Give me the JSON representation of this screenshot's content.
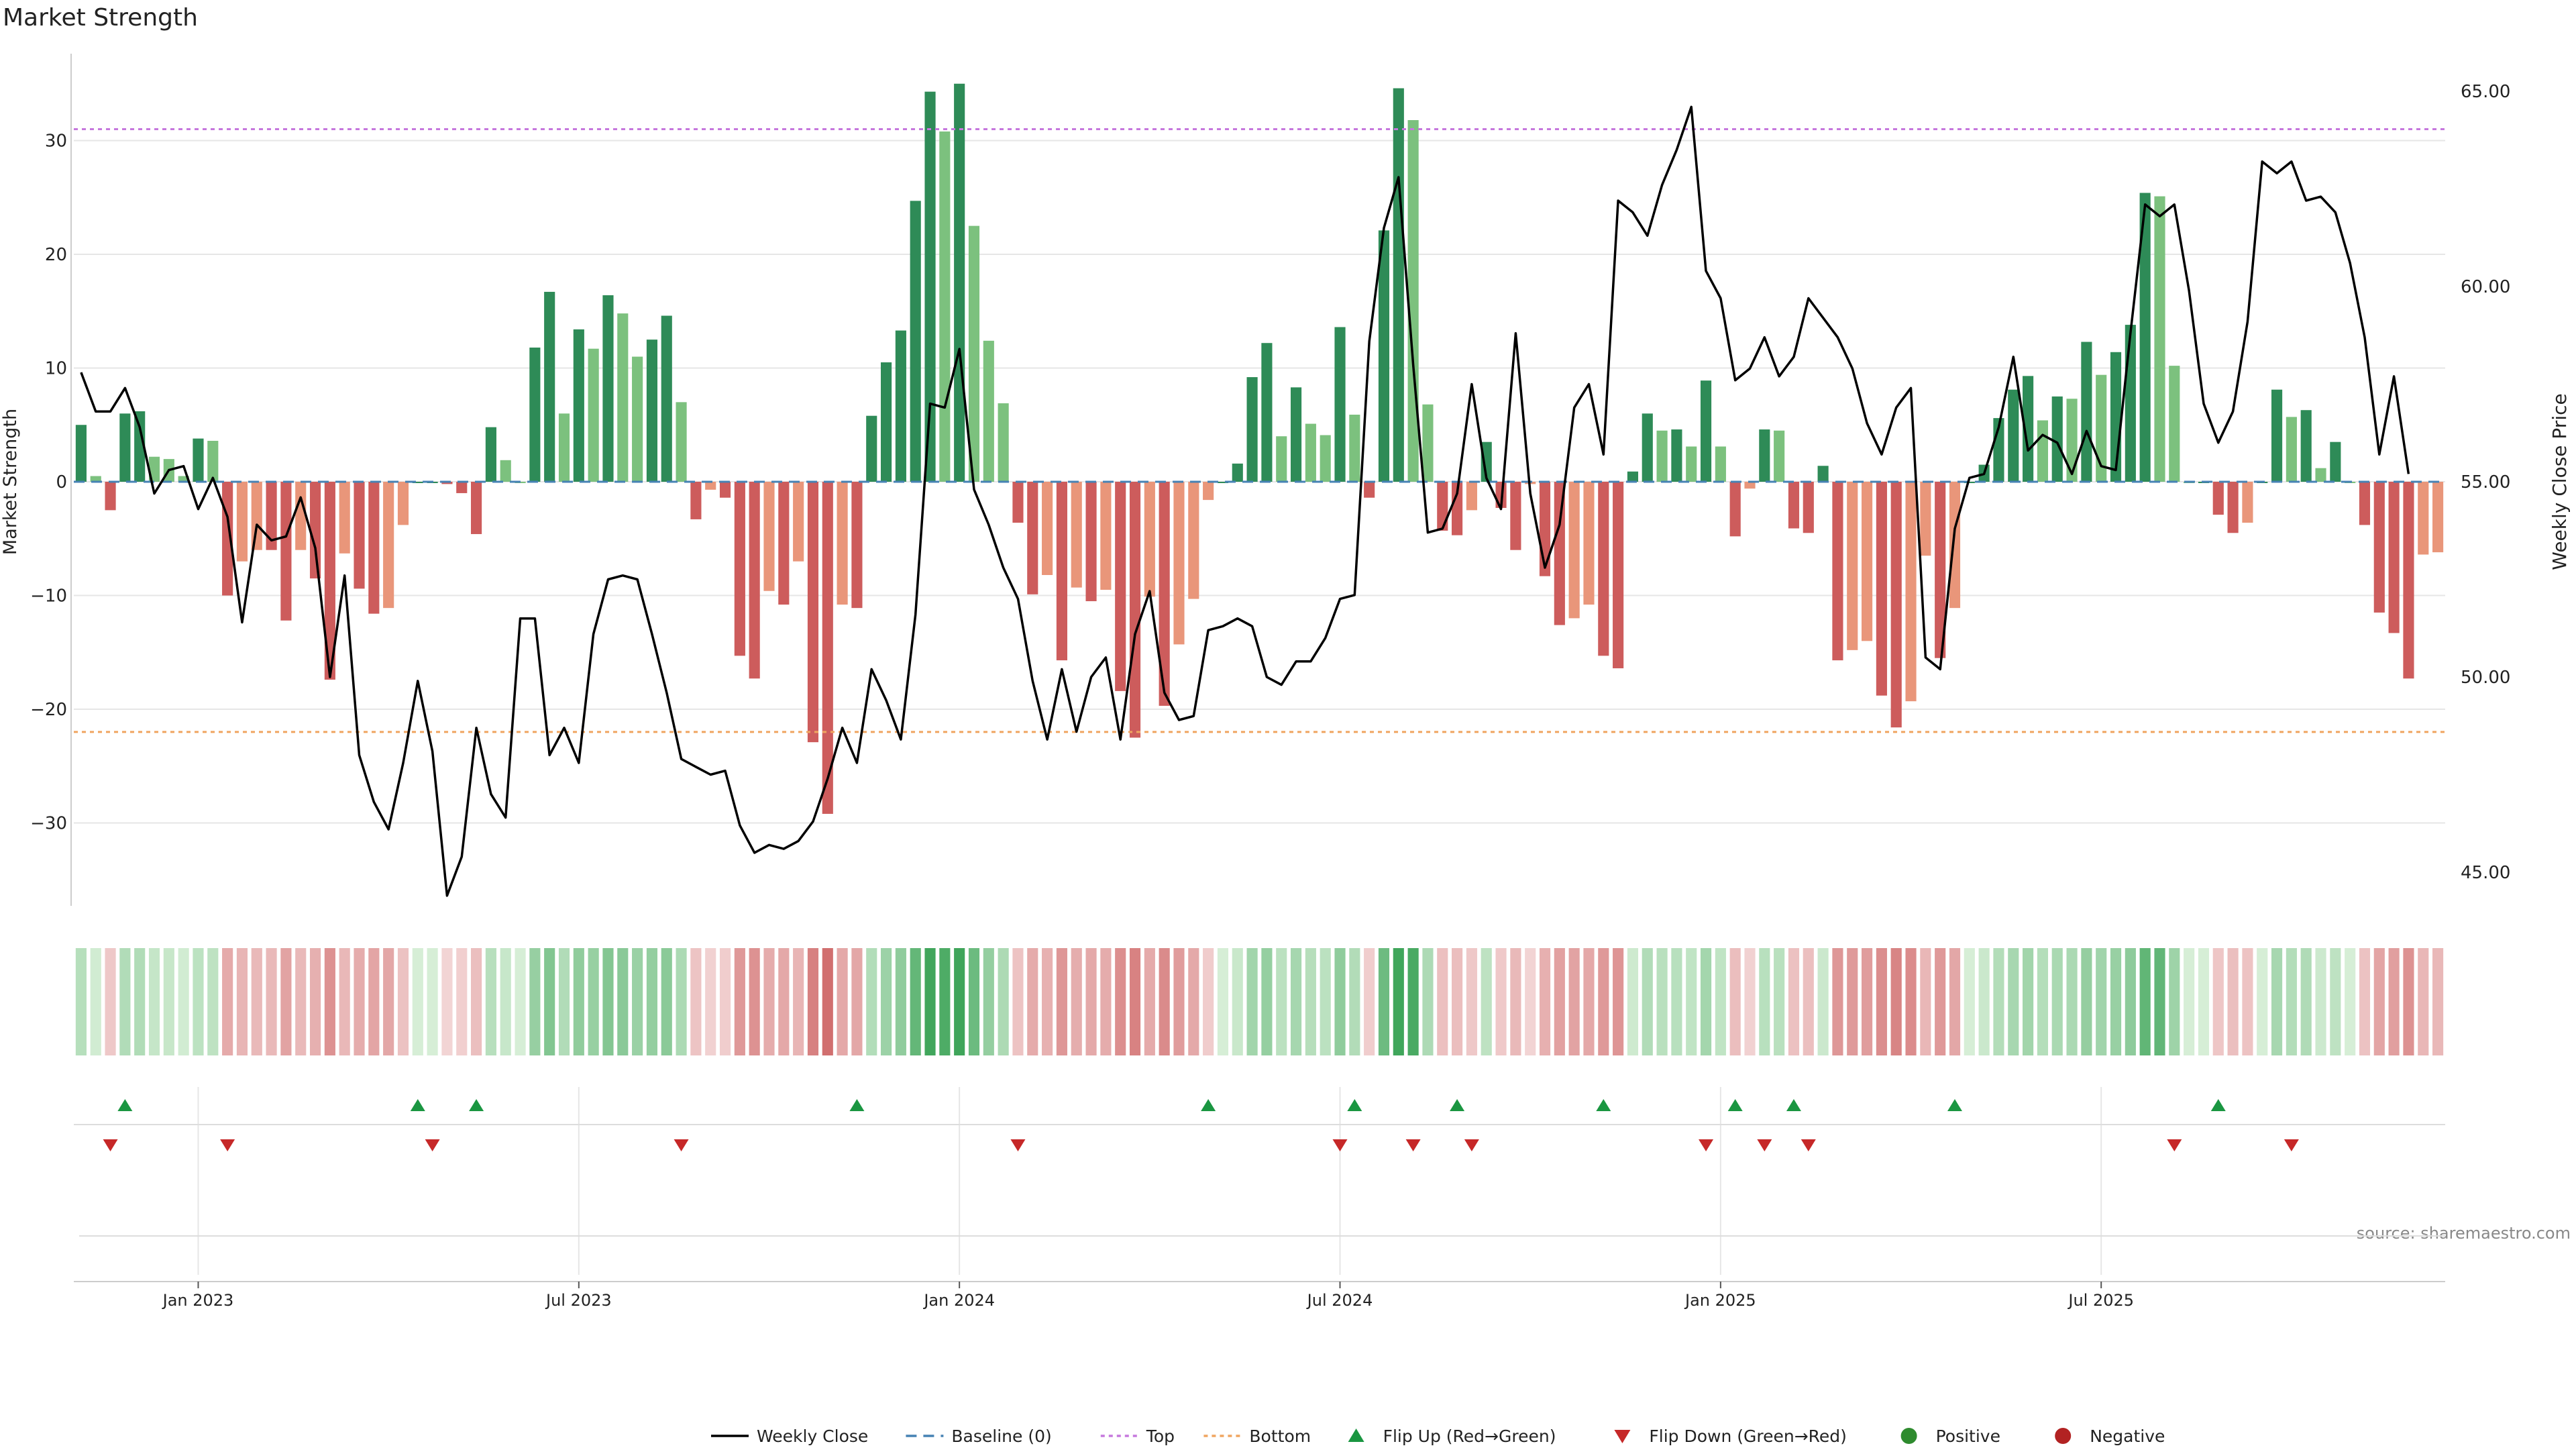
{
  "title": "Market Strength",
  "source": "source: sharemaestro.com",
  "colors": {
    "dark_green": "#2e8b57",
    "light_green": "#7cc17e",
    "dark_red": "#cd5c5c",
    "light_red": "#e9967a",
    "price_line": "#000000",
    "baseline": "#4682b4",
    "top_line": "#c678dd",
    "bottom_line": "#f0a560",
    "flip_up": "#1a9641",
    "flip_down": "#c62828",
    "positive": "#2e8b2e",
    "negative": "#b22222",
    "grid": "#e6e6e6",
    "axis": "#cccccc",
    "text": "#222222",
    "source_text": "#888888"
  },
  "legend": [
    {
      "key": "weekly_close",
      "label": "Weekly Close"
    },
    {
      "key": "baseline",
      "label": "Baseline (0)"
    },
    {
      "key": "top",
      "label": "Top"
    },
    {
      "key": "bottom",
      "label": "Bottom"
    },
    {
      "key": "flip_up",
      "label": "Flip Up (Red→Green)"
    },
    {
      "key": "flip_down",
      "label": "Flip Down (Green→Red)"
    },
    {
      "key": "positive",
      "label": "Positive"
    },
    {
      "key": "negative",
      "label": "Negative"
    }
  ],
  "chart_data": {
    "type": "bar",
    "title": "Market Strength",
    "ylabel_left": "Market Strength",
    "ylabel_right": "Weekly Close Price",
    "ylim_left": [
      -37,
      37
    ],
    "ylim_right": [
      44,
      66
    ],
    "left_ticks": [
      -30,
      -20,
      -10,
      0,
      10,
      20,
      30
    ],
    "left_tick_labels": [
      "−30",
      "−20",
      "−10",
      "0",
      "10",
      "20",
      "30"
    ],
    "right_ticks": [
      45,
      50,
      55,
      60,
      65
    ],
    "right_tick_labels": [
      "45.00",
      "50.00",
      "55.00",
      "60.00",
      "65.00"
    ],
    "x_tick_positions": [
      8.5,
      34.5,
      60.5,
      86.5,
      112.5,
      138.5
    ],
    "x_tick_labels": [
      "Jan 2023",
      "Jul 2023",
      "Jan 2024",
      "Jul 2024",
      "Jan 2025",
      "Jul 2025"
    ],
    "top_threshold": 31,
    "bottom_threshold": -22,
    "baseline": 0,
    "strength": [
      5,
      0.5,
      -2.5,
      6,
      6.2,
      2.2,
      2,
      0.5,
      3.8,
      3.6,
      -10,
      -7,
      -6,
      -6,
      -12.2,
      -6,
      -8.5,
      -17.4,
      -6.3,
      -9.4,
      -11.6,
      -11.1,
      -3.8,
      0,
      0,
      -0.2,
      -1,
      -4.6,
      4.8,
      1.9,
      0,
      11.8,
      16.7,
      6,
      13.4,
      11.7,
      16.4,
      14.8,
      11,
      12.5,
      14.6,
      7,
      -3.3,
      -0.7,
      -1.4,
      -15.3,
      -17.3,
      -9.6,
      -10.8,
      -7,
      -22.9,
      -29.2,
      -10.8,
      -11.1,
      5.8,
      10.5,
      13.3,
      24.7,
      34.3,
      30.8,
      35,
      22.5,
      12.4,
      6.9,
      -3.6,
      -9.9,
      -8.2,
      -15.7,
      -9.3,
      -10.5,
      -9.5,
      -18.4,
      -22.5,
      -10.1,
      -19.7,
      -14.3,
      -10.3,
      -1.6,
      0,
      1.6,
      9.2,
      12.2,
      4,
      8.3,
      5.1,
      4.1,
      13.6,
      5.9,
      -1.4,
      22.1,
      34.6,
      31.8,
      6.8,
      -4.3,
      -4.7,
      -2.5,
      3.5,
      -2.3,
      -6,
      -0.2,
      -8.3,
      -12.6,
      -12,
      -10.8,
      -15.3,
      -16.4,
      0.9,
      6,
      4.5,
      4.6,
      3.1,
      8.9,
      3.1,
      -4.8,
      -0.6,
      4.6,
      4.5,
      -4.1,
      -4.5,
      1.4,
      -15.7,
      -14.8,
      -14,
      -18.8,
      -21.6,
      -19.3,
      -6.5,
      -15.5,
      -11.1,
      0,
      1.5,
      5.6,
      8.1,
      9.3,
      5.4,
      7.5,
      7.3,
      12.3,
      9.4,
      11.4,
      13.8,
      25.4,
      25.1,
      10.2,
      0,
      0,
      -2.9,
      -4.5,
      -3.6,
      0,
      8.1,
      5.7,
      6.3,
      1.2,
      3.5,
      0,
      -3.8,
      -11.5,
      -13.3,
      -17.3,
      -6.4,
      -6.2
    ],
    "flip_up_at": [
      3,
      23,
      27,
      53,
      77,
      87,
      94,
      104,
      113,
      117,
      128,
      146
    ],
    "flip_down_at": [
      2,
      10,
      24,
      41,
      64,
      86,
      91,
      95,
      111,
      115,
      118,
      143,
      151
    ],
    "close": [
      57.8,
      56.8,
      56.8,
      57.4,
      56.4,
      54.7,
      55.3,
      55.4,
      54.3,
      55.1,
      54.1,
      51.4,
      53.9,
      53.5,
      53.6,
      54.6,
      53.3,
      50.0,
      52.6,
      48.0,
      46.8,
      46.1,
      47.8,
      49.9,
      48.1,
      44.4,
      45.4,
      48.7,
      47.0,
      46.4,
      51.5,
      51.5,
      48.0,
      48.7,
      47.8,
      51.1,
      52.5,
      52.6,
      52.5,
      51.1,
      49.6,
      47.9,
      47.7,
      47.5,
      47.6,
      46.2,
      45.5,
      45.7,
      45.6,
      45.8,
      46.3,
      47.4,
      48.7,
      47.8,
      50.2,
      49.4,
      48.4,
      51.6,
      57.0,
      56.9,
      58.4,
      54.8,
      53.9,
      52.8,
      52.0,
      49.9,
      48.4,
      50.2,
      48.6,
      50.0,
      50.5,
      48.4,
      51.1,
      52.2,
      49.6,
      48.9,
      49.0,
      51.2,
      51.3,
      51.5,
      51.3,
      50.0,
      49.8,
      50.4,
      50.4,
      51.0,
      52.0,
      52.1,
      58.6,
      61.5,
      62.8,
      58.0,
      53.7,
      53.8,
      54.7,
      57.5,
      55.1,
      54.3,
      58.8,
      54.7,
      52.8,
      53.9,
      56.9,
      57.5,
      55.7,
      62.2,
      61.9,
      61.3,
      62.6,
      63.5,
      64.6,
      60.4,
      59.7,
      57.6,
      57.9,
      58.7,
      57.7,
      58.2,
      59.7,
      59.2,
      58.7,
      57.9,
      56.5,
      55.7,
      56.9,
      57.4,
      50.5,
      50.2,
      53.8,
      55.1,
      55.2,
      56.4,
      58.2,
      55.8,
      56.2,
      56.0,
      55.2,
      56.3,
      55.4,
      55.3,
      58.8,
      62.1,
      61.8,
      62.1,
      59.9,
      57.0,
      56.0,
      56.8,
      59.1,
      63.2,
      62.9,
      63.2,
      62.2,
      62.3,
      61.9,
      60.6,
      58.7,
      55.7,
      57.7,
      55.2
    ]
  }
}
